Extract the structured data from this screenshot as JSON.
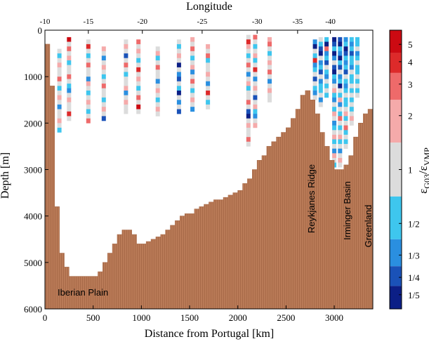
{
  "chart_data": {
    "type": "heatmap",
    "xlabel": "Distance from Portugal [km]",
    "ylabel": "Depth [m]",
    "top_axis_label": "Longitude",
    "colorbar_label": "ε_G03/ε_VMP",
    "xlim": [
      0,
      3400
    ],
    "ylim": [
      0,
      6000
    ],
    "y_reversed": true,
    "x_ticks": [
      "0",
      "500",
      "1000",
      "1500",
      "2000",
      "2500",
      "3000"
    ],
    "y_ticks": [
      "0",
      "1000",
      "2000",
      "3000",
      "4000",
      "5000",
      "6000"
    ],
    "longitude_ticks": [
      {
        "label": "-10",
        "km": 0
      },
      {
        "label": "-15",
        "km": 450
      },
      {
        "label": "-20",
        "km": 1010
      },
      {
        "label": "-25",
        "km": 1630
      },
      {
        "label": "-30",
        "km": 2200
      },
      {
        "label": "-35",
        "km": 2620
      },
      {
        "label": "-40",
        "km": 2960
      }
    ],
    "colorbar_ticks": [
      "5",
      "4",
      "3",
      "2",
      "1",
      "1/2",
      "1/3",
      "1/4",
      "1/5"
    ],
    "colorbar_colors": [
      "#cc0a12",
      "#dd2a2a",
      "#ee6a6a",
      "#f5aaaa",
      "#dcdcdc",
      "#3ec6ee",
      "#2a8fe0",
      "#1a52b8",
      "#0c1f86"
    ],
    "colorbar_level_values": [
      5,
      4,
      3,
      2,
      1,
      0.5,
      0.333,
      0.25,
      0.2
    ],
    "annotations": [
      "Iberian Plain",
      "Reykjanes Ridge",
      "Irminger Basin",
      "Greenland"
    ],
    "bottom_topography": {
      "distance_km": [
        0,
        50,
        100,
        150,
        200,
        250,
        300,
        350,
        400,
        450,
        500,
        550,
        600,
        650,
        700,
        750,
        800,
        850,
        900,
        950,
        1000,
        1050,
        1100,
        1150,
        1200,
        1250,
        1300,
        1350,
        1400,
        1450,
        1500,
        1550,
        1600,
        1650,
        1700,
        1750,
        1800,
        1850,
        1900,
        1950,
        2000,
        2050,
        2100,
        2150,
        2200,
        2250,
        2300,
        2350,
        2400,
        2450,
        2500,
        2550,
        2600,
        2650,
        2700,
        2750,
        2800,
        2850,
        2900,
        2950,
        3000,
        3050,
        3100,
        3150,
        3200,
        3250,
        3300,
        3350,
        3400
      ],
      "depth_m": [
        300,
        1200,
        3800,
        4800,
        5100,
        5300,
        5300,
        5300,
        5300,
        5300,
        5300,
        5200,
        5000,
        4800,
        4600,
        4400,
        4300,
        4300,
        4400,
        4600,
        4600,
        4550,
        4500,
        4450,
        4400,
        4300,
        4200,
        4100,
        4000,
        3950,
        3950,
        3850,
        3800,
        3750,
        3700,
        3650,
        3650,
        3600,
        3550,
        3500,
        3450,
        3300,
        3200,
        3000,
        2800,
        2700,
        2500,
        2400,
        2300,
        2200,
        2100,
        1900,
        1700,
        1400,
        1300,
        1500,
        1800,
        2200,
        2500,
        2800,
        3000,
        3000,
        2900,
        2700,
        2300,
        2000,
        1800,
        1700,
        1600
      ]
    },
    "section": {
      "bin_m": 100,
      "levels": [
        "r5",
        "r4",
        "r3",
        "r2",
        "g",
        "b2",
        "b3",
        "b4",
        "b5"
      ],
      "level_fill": [
        "#cc0a12",
        "#dd2a2a",
        "#ee6a6a",
        "#f5aaaa",
        "#dcdcdc",
        "#3ec6ee",
        "#2a8fe0",
        "#1a52b8",
        "#0c1f86"
      ],
      "profiles": [
        {
          "x_km": 150,
          "start_m": 400,
          "pattern": [
            "g",
            "b2",
            "g",
            "r2",
            "g",
            "g",
            "r3",
            "g",
            "b2",
            "g",
            "r2",
            "g",
            "b3",
            "g",
            "g",
            "r2",
            "g",
            "b2"
          ]
        },
        {
          "x_km": 250,
          "start_m": 150,
          "pattern": [
            "r5",
            "g",
            "r3",
            "g",
            "r2",
            "b2",
            "g",
            "g",
            "r3",
            "g",
            "b2",
            "b3",
            "g",
            "r2",
            "g",
            "g",
            "r4",
            "g"
          ]
        },
        {
          "x_km": 450,
          "start_m": 200,
          "pattern": [
            "g",
            "r4",
            "g",
            "b2",
            "g",
            "r3",
            "g",
            "g",
            "b3",
            "r2",
            "g",
            "b2",
            "g",
            "r2",
            "g",
            "b2",
            "g",
            "r3"
          ]
        },
        {
          "x_km": 610,
          "start_m": 350,
          "pattern": [
            "r2",
            "g",
            "b3",
            "g",
            "r2",
            "g",
            "b2",
            "g",
            "r3",
            "g",
            "g",
            "b2",
            "g",
            "r2",
            "g",
            "b4"
          ]
        },
        {
          "x_km": 840,
          "start_m": 200,
          "pattern": [
            "g",
            "r2",
            "g",
            "b4",
            "g",
            "r3",
            "g",
            "b2",
            "g",
            "g",
            "r2",
            "b3",
            "g",
            "r2",
            "g",
            "g"
          ]
        },
        {
          "x_km": 970,
          "start_m": 200,
          "pattern": [
            "r3",
            "g",
            "r2",
            "g",
            "b2",
            "g",
            "r4",
            "g",
            "r2",
            "g",
            "b2",
            "g",
            "r3",
            "g",
            "r5",
            "g"
          ]
        },
        {
          "x_km": 1170,
          "start_m": 350,
          "pattern": [
            "g",
            "r2",
            "b2",
            "g",
            "r3",
            "g",
            "g",
            "b3",
            "g",
            "r2",
            "g",
            "b2",
            "g",
            "r2",
            "g"
          ]
        },
        {
          "x_km": 1390,
          "start_m": 200,
          "pattern": [
            "g",
            "b2",
            "g",
            "r2",
            "g",
            "b5",
            "g",
            "b3",
            "b4",
            "g",
            "b2",
            "b5",
            "g",
            "b3",
            "g",
            "b4"
          ]
        },
        {
          "x_km": 1530,
          "start_m": 150,
          "pattern": [
            "r2",
            "g",
            "r3",
            "g",
            "b2",
            "g",
            "r2",
            "b3",
            "g",
            "r3",
            "g",
            "b2",
            "g",
            "r2",
            "g",
            "b3"
          ]
        },
        {
          "x_km": 1690,
          "start_m": 300,
          "pattern": [
            "r2",
            "g",
            "r3",
            "b2",
            "g",
            "g",
            "r2",
            "g",
            "b3",
            "g",
            "r4",
            "g",
            "b2",
            "g"
          ]
        },
        {
          "x_km": 2110,
          "start_m": 100,
          "pattern": [
            "g",
            "r4",
            "r2",
            "g",
            "b2",
            "g",
            "r3",
            "g",
            "b3",
            "g",
            "r2",
            "b2",
            "g",
            "g",
            "r3",
            "g",
            "b4",
            "b5",
            "g",
            "r2",
            "g",
            "g",
            "r3",
            "g"
          ]
        },
        {
          "x_km": 2180,
          "start_m": 100,
          "pattern": [
            "r3",
            "g",
            "b2",
            "g",
            "r2",
            "b2",
            "g",
            "r4",
            "g",
            "b3",
            "g",
            "r2",
            "g",
            "b4",
            "g",
            "r2",
            "b2",
            "b3",
            "g",
            "r2"
          ]
        },
        {
          "x_km": 2330,
          "start_m": 150,
          "pattern": [
            "r2",
            "r3",
            "g",
            "b2",
            "g",
            "r2",
            "g",
            "r3",
            "g",
            "b3",
            "g",
            "r2",
            "g",
            "g"
          ]
        },
        {
          "x_km": 2800,
          "start_m": 200,
          "pattern": [
            "b3",
            "b5",
            "g",
            "b2",
            "r4",
            "b3",
            "b2",
            "g",
            "b4",
            "g",
            "b2",
            "b3",
            "g"
          ]
        },
        {
          "x_km": 2860,
          "start_m": 150,
          "pattern": [
            "g",
            "b2",
            "b4",
            "b5",
            "g",
            "b3",
            "b2",
            "b4",
            "g",
            "b3",
            "b2",
            "b2",
            "g",
            "b3",
            "g"
          ]
        },
        {
          "x_km": 2920,
          "start_m": 150,
          "pattern": [
            "b2",
            "b5",
            "r3",
            "b3",
            "b2",
            "b4",
            "g",
            "b2",
            "b3",
            "g",
            "b2",
            "g",
            "b2"
          ]
        },
        {
          "x_km": 3000,
          "start_m": 150,
          "pattern": [
            "b5",
            "b4",
            "b2",
            "b5",
            "b3",
            "g",
            "b4",
            "b5",
            "b2",
            "b3",
            "g",
            "r2",
            "b2",
            "b3",
            "g",
            "b2",
            "r2",
            "g",
            "b3",
            "b2",
            "g",
            "r2",
            "b2",
            "g",
            "b3",
            "r2",
            "g",
            "b2"
          ]
        },
        {
          "x_km": 3060,
          "start_m": 150,
          "pattern": [
            "b4",
            "b5",
            "b2",
            "b3",
            "b5",
            "b2",
            "b4",
            "g",
            "b3",
            "b2",
            "b5",
            "g",
            "b2",
            "r2",
            "b3",
            "g",
            "b2",
            "r3",
            "g",
            "b2",
            "g",
            "r2",
            "b2",
            "g",
            "b3",
            "g",
            "r2",
            "g"
          ]
        },
        {
          "x_km": 3120,
          "start_m": 150,
          "pattern": [
            "b3",
            "b2",
            "b5",
            "b4",
            "b2",
            "b3",
            "b2",
            "b4",
            "g",
            "b2",
            "b3",
            "b2",
            "g",
            "b2",
            "b2",
            "g",
            "r2",
            "b2",
            "g",
            "r3",
            "b2",
            "g",
            "b2",
            "g"
          ]
        },
        {
          "x_km": 3180,
          "start_m": 150,
          "pattern": [
            "b2",
            "b3",
            "b2",
            "b4",
            "b2",
            "b2",
            "b3",
            "g",
            "b2",
            "b2",
            "g",
            "b2",
            "g",
            "b2",
            "g",
            "b2",
            "g",
            "r2",
            "g"
          ]
        },
        {
          "x_km": 3240,
          "start_m": 150,
          "pattern": [
            "b2",
            "b2",
            "g",
            "b3",
            "b2",
            "g",
            "b2",
            "b2",
            "g",
            "b2",
            "g",
            "b2",
            "g"
          ]
        }
      ]
    }
  }
}
